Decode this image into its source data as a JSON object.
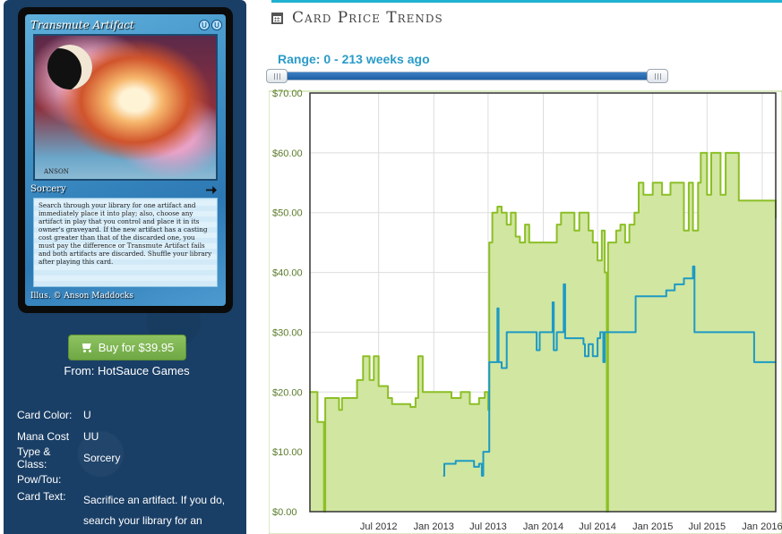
{
  "card": {
    "title": "Transmute Artifact",
    "mana_symbols": [
      "U",
      "U"
    ],
    "type_line": "Sorcery",
    "set_icon": "anvil-icon",
    "rules_text": "Search through your library for one artifact and immediately place it into play; also, choose any artifact in play that you control and place it in its owner's graveyard. If the new artifact has a casting cost greater than that of the discarded one, you must pay the difference or Transmute Artifact fails and both artifacts are discarded. Shuffle your library after playing this card.",
    "illustrator": "Illus. © Anson Maddocks",
    "artist_signature": "ANSON"
  },
  "buy": {
    "label": "Buy for $39.95",
    "from": "From: HotSauce Games"
  },
  "attributes": [
    {
      "label": "Card Color:",
      "value": "U"
    },
    {
      "label": "Mana Cost",
      "value": "UU"
    },
    {
      "label": "Type & Class:",
      "value": "Sorcery"
    },
    {
      "label": "Pow/Tou:",
      "value": ""
    },
    {
      "label": "Card Text:",
      "value": "Sacrifice an artifact. If you do, search your library for an"
    }
  ],
  "header": {
    "title": "Card Price Trends",
    "icon": "calendar-icon"
  },
  "range": {
    "label": "Range: 0 - 213 weeks ago",
    "min_weeks": 0,
    "max_weeks": 213
  },
  "colors": {
    "accent": "#1fb2d0",
    "green": "#8cbf26",
    "green_fill": "#d1e6a1",
    "blue": "#1d9ac4",
    "buy": "#7cb64f"
  },
  "chart_data": {
    "type": "line",
    "ylim": [
      0,
      70
    ],
    "yticks": [
      "$0.00",
      "$10.00",
      "$20.00",
      "$30.00",
      "$40.00",
      "$50.00",
      "$60.00",
      "$70.00"
    ],
    "xlim": [
      "2011-11-15",
      "2016-02-15"
    ],
    "xticks": [
      {
        "date": "2012-07-01",
        "label": "Jul 2012"
      },
      {
        "date": "2013-01-01",
        "label": "Jan 2013"
      },
      {
        "date": "2013-07-01",
        "label": "Jul 2013"
      },
      {
        "date": "2014-01-01",
        "label": "Jan 2014"
      },
      {
        "date": "2014-07-01",
        "label": "Jul 2014"
      },
      {
        "date": "2015-01-01",
        "label": "Jan 2015"
      },
      {
        "date": "2015-07-01",
        "label": "Jul 2015"
      },
      {
        "date": "2016-01-01",
        "label": "Jan 2016"
      }
    ],
    "grid": true,
    "series": [
      {
        "style": "area",
        "color": "#8cbf26",
        "points": [
          [
            "2011-11-15",
            20
          ],
          [
            "2011-12-10",
            15
          ],
          [
            "2012-01-01",
            0
          ],
          [
            "2012-01-05",
            19
          ],
          [
            "2012-02-20",
            17
          ],
          [
            "2012-03-01",
            19
          ],
          [
            "2012-04-15",
            19
          ],
          [
            "2012-04-20",
            22
          ],
          [
            "2012-05-10",
            26
          ],
          [
            "2012-06-01",
            22
          ],
          [
            "2012-06-15",
            26
          ],
          [
            "2012-07-01",
            21
          ],
          [
            "2012-07-15",
            21
          ],
          [
            "2012-08-01",
            19
          ],
          [
            "2012-08-15",
            18
          ],
          [
            "2012-10-01",
            18
          ],
          [
            "2012-10-15",
            17.5
          ],
          [
            "2012-11-01",
            19
          ],
          [
            "2012-11-10",
            26
          ],
          [
            "2012-11-25",
            20
          ],
          [
            "2013-01-01",
            20
          ],
          [
            "2013-03-01",
            19
          ],
          [
            "2013-04-01",
            20
          ],
          [
            "2013-05-01",
            18
          ],
          [
            "2013-06-01",
            19
          ],
          [
            "2013-06-20",
            20
          ],
          [
            "2013-07-01",
            17
          ],
          [
            "2013-07-05",
            45
          ],
          [
            "2013-07-15",
            50
          ],
          [
            "2013-08-01",
            51
          ],
          [
            "2013-08-15",
            50
          ],
          [
            "2013-09-01",
            48
          ],
          [
            "2013-09-15",
            50
          ],
          [
            "2013-10-01",
            46
          ],
          [
            "2013-10-15",
            45
          ],
          [
            "2013-11-01",
            48
          ],
          [
            "2013-11-15",
            45
          ],
          [
            "2013-12-01",
            45
          ],
          [
            "2014-01-01",
            45
          ],
          [
            "2014-02-01",
            45
          ],
          [
            "2014-02-15",
            48
          ],
          [
            "2014-03-01",
            50
          ],
          [
            "2014-04-01",
            50
          ],
          [
            "2014-04-15",
            47
          ],
          [
            "2014-05-01",
            50
          ],
          [
            "2014-06-01",
            47
          ],
          [
            "2014-06-15",
            45
          ],
          [
            "2014-07-01",
            42
          ],
          [
            "2014-07-15",
            47
          ],
          [
            "2014-07-25",
            40
          ],
          [
            "2014-08-01",
            0
          ],
          [
            "2014-08-05",
            45
          ],
          [
            "2014-09-01",
            47
          ],
          [
            "2014-09-15",
            48
          ],
          [
            "2014-10-01",
            45
          ],
          [
            "2014-10-15",
            48
          ],
          [
            "2014-11-01",
            50
          ],
          [
            "2014-11-15",
            55
          ],
          [
            "2014-12-01",
            53
          ],
          [
            "2015-01-01",
            55
          ],
          [
            "2015-02-01",
            53
          ],
          [
            "2015-03-01",
            55
          ],
          [
            "2015-04-01",
            55
          ],
          [
            "2015-04-15",
            47
          ],
          [
            "2015-05-01",
            55
          ],
          [
            "2015-05-15",
            47
          ],
          [
            "2015-06-01",
            55
          ],
          [
            "2015-06-10",
            60
          ],
          [
            "2015-07-01",
            53
          ],
          [
            "2015-07-15",
            60
          ],
          [
            "2015-08-01",
            60
          ],
          [
            "2015-08-15",
            53
          ],
          [
            "2015-09-01",
            60
          ],
          [
            "2015-10-01",
            60
          ],
          [
            "2015-10-15",
            52
          ],
          [
            "2015-11-01",
            52
          ],
          [
            "2015-12-01",
            52
          ],
          [
            "2016-01-01",
            52
          ],
          [
            "2016-02-01",
            52
          ],
          [
            "2016-02-15",
            49
          ]
        ]
      },
      {
        "style": "line",
        "color": "#1d9ac4",
        "points": [
          [
            "2013-02-01",
            6
          ],
          [
            "2013-02-05",
            8
          ],
          [
            "2013-03-01",
            8
          ],
          [
            "2013-03-15",
            8.5
          ],
          [
            "2013-05-01",
            8.5
          ],
          [
            "2013-05-15",
            7.5
          ],
          [
            "2013-06-01",
            8
          ],
          [
            "2013-06-10",
            6
          ],
          [
            "2013-06-15",
            10
          ],
          [
            "2013-07-01",
            10
          ],
          [
            "2013-07-05",
            25
          ],
          [
            "2013-08-01",
            34
          ],
          [
            "2013-08-05",
            25
          ],
          [
            "2013-08-15",
            24
          ],
          [
            "2013-09-01",
            30
          ],
          [
            "2013-10-01",
            30
          ],
          [
            "2013-11-01",
            30
          ],
          [
            "2013-12-01",
            30
          ],
          [
            "2013-12-10",
            27
          ],
          [
            "2013-12-20",
            30
          ],
          [
            "2014-01-10",
            30
          ],
          [
            "2014-02-01",
            35
          ],
          [
            "2014-02-05",
            27
          ],
          [
            "2014-02-15",
            30
          ],
          [
            "2014-03-01",
            30
          ],
          [
            "2014-03-10",
            38
          ],
          [
            "2014-03-15",
            29
          ],
          [
            "2014-04-01",
            29
          ],
          [
            "2014-05-01",
            29
          ],
          [
            "2014-05-15",
            28
          ],
          [
            "2014-05-20",
            26
          ],
          [
            "2014-06-01",
            28
          ],
          [
            "2014-06-15",
            26
          ],
          [
            "2014-07-01",
            29
          ],
          [
            "2014-07-10",
            30
          ],
          [
            "2014-07-20",
            25
          ],
          [
            "2014-07-25",
            30
          ],
          [
            "2014-09-01",
            30
          ],
          [
            "2014-10-01",
            30
          ],
          [
            "2014-11-01",
            30
          ],
          [
            "2014-11-05",
            36
          ],
          [
            "2015-01-01",
            36
          ],
          [
            "2015-02-01",
            36
          ],
          [
            "2015-02-15",
            37
          ],
          [
            "2015-03-15",
            38
          ],
          [
            "2015-04-15",
            39
          ],
          [
            "2015-05-15",
            41
          ],
          [
            "2015-05-20",
            30
          ],
          [
            "2015-08-01",
            30
          ],
          [
            "2015-11-01",
            30
          ],
          [
            "2015-12-01",
            30
          ],
          [
            "2015-12-05",
            25
          ],
          [
            "2016-02-15",
            25
          ]
        ]
      }
    ]
  }
}
